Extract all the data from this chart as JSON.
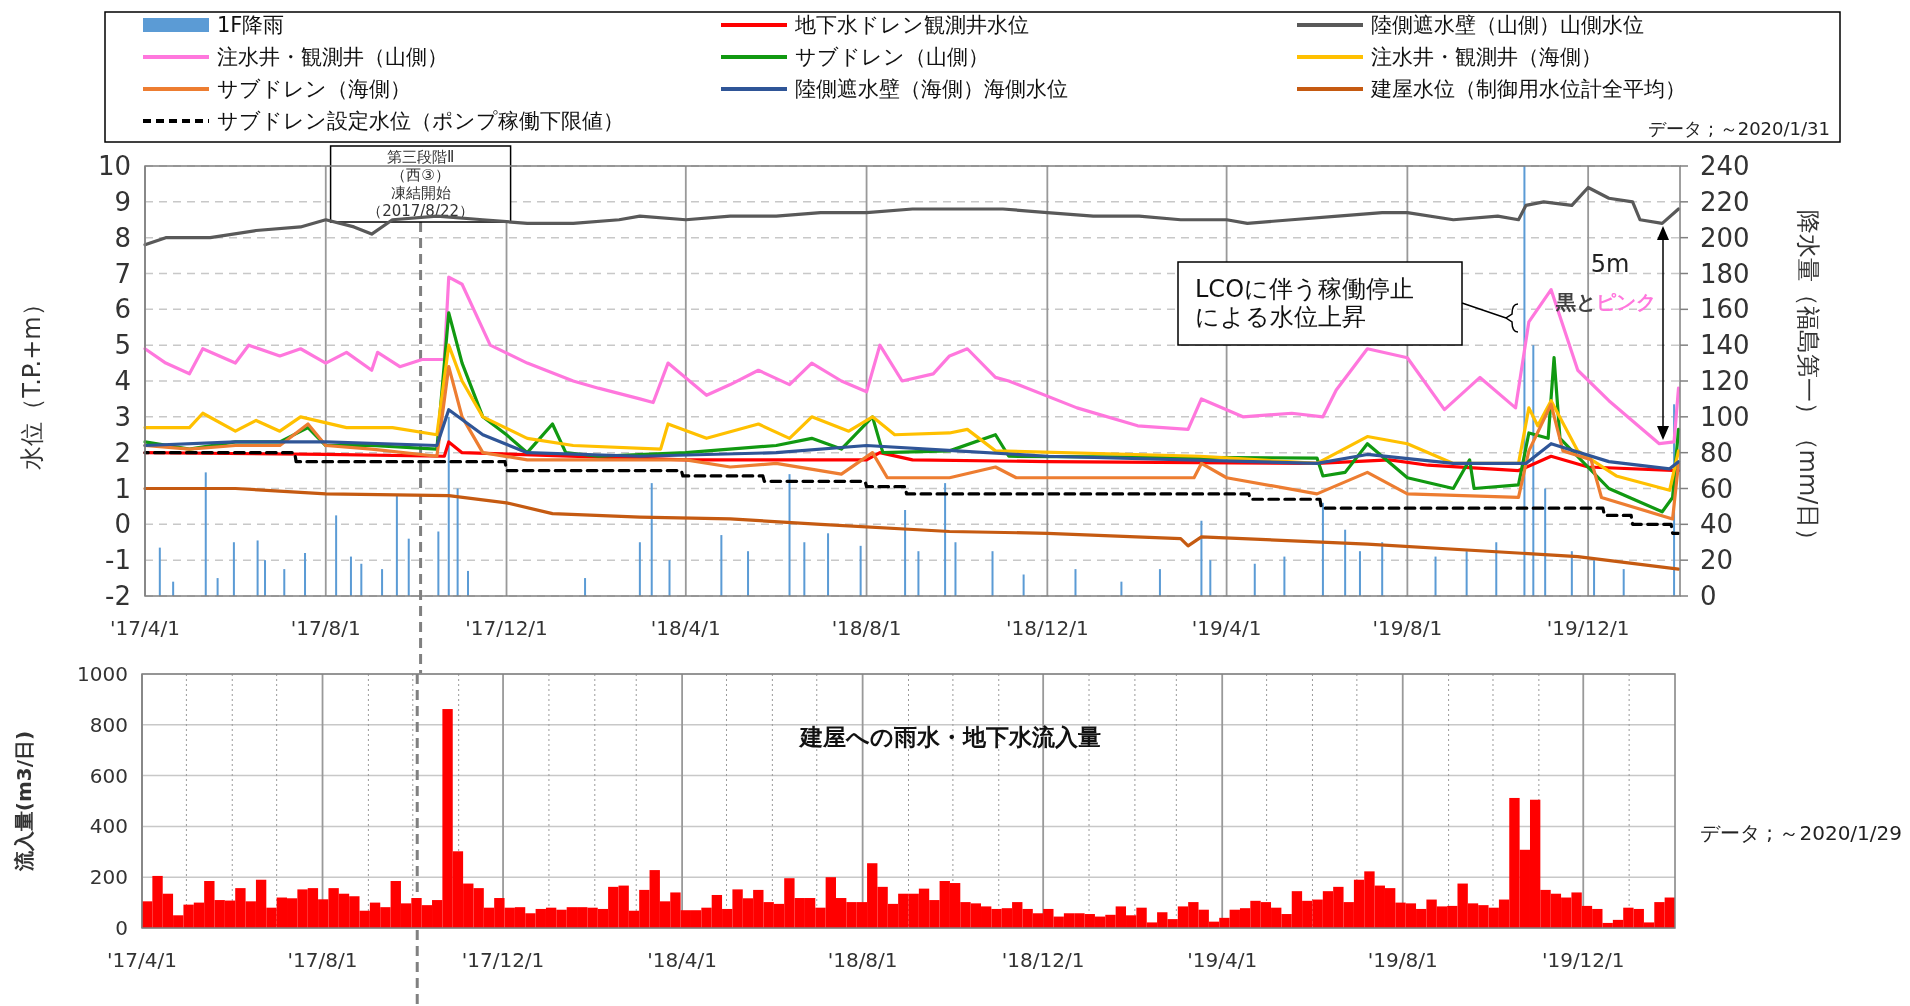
{
  "chart_data": [
    {
      "type": "line",
      "ylabel": "水位（T.P.+m）",
      "y2label": "降水量（福島第一）（mm/日）",
      "legend": "top",
      "grid": true,
      "xlim": [
        "2017-04-01",
        "2020-02-01"
      ],
      "xticks": [
        {
          "value": "2017-04-01",
          "label": "'17/4/1"
        },
        {
          "value": "2017-08-01",
          "label": "'17/8/1"
        },
        {
          "value": "2017-12-01",
          "label": "'17/12/1"
        },
        {
          "value": "2018-04-01",
          "label": "'18/4/1"
        },
        {
          "value": "2018-08-01",
          "label": "'18/8/1"
        },
        {
          "value": "2018-12-01",
          "label": "'18/12/1"
        },
        {
          "value": "2019-04-01",
          "label": "'19/4/1"
        },
        {
          "value": "2019-08-01",
          "label": "'19/8/1"
        },
        {
          "value": "2019-12-01",
          "label": "'19/12/1"
        }
      ],
      "ylim": [
        -2,
        10
      ],
      "yticks": [
        -2,
        -1,
        0,
        1,
        2,
        3,
        4,
        5,
        6,
        7,
        8,
        9,
        10
      ],
      "y2lim": [
        0,
        240
      ],
      "y2ticks": [
        0,
        20,
        40,
        60,
        80,
        100,
        120,
        140,
        160,
        180,
        200,
        220,
        240
      ],
      "series": [
        {
          "name": "1F降雨",
          "type": "bar",
          "axis": "y2",
          "color": "#5b9bd5",
          "x": [
            "2017-04-11",
            "2017-04-20",
            "2017-05-12",
            "2017-05-20",
            "2017-05-31",
            "2017-06-16",
            "2017-06-21",
            "2017-07-04",
            "2017-07-18",
            "2017-08-08",
            "2017-08-18",
            "2017-08-25",
            "2017-09-08",
            "2017-09-18",
            "2017-09-26",
            "2017-10-16",
            "2017-10-23",
            "2017-10-29",
            "2017-11-05",
            "2018-01-23",
            "2018-03-01",
            "2018-03-09",
            "2018-03-21",
            "2018-04-25",
            "2018-05-13",
            "2018-06-10",
            "2018-06-20",
            "2018-07-06",
            "2018-07-28",
            "2018-08-27",
            "2018-09-05",
            "2018-09-23",
            "2018-09-30",
            "2018-10-25",
            "2018-11-15",
            "2018-12-20",
            "2019-01-20",
            "2019-02-15",
            "2019-03-15",
            "2019-03-21",
            "2019-04-20",
            "2019-05-10",
            "2019-06-05",
            "2019-06-20",
            "2019-06-30",
            "2019-07-15",
            "2019-08-20",
            "2019-09-10",
            "2019-09-30",
            "2019-10-19",
            "2019-10-25",
            "2019-11-02",
            "2019-11-20",
            "2019-12-05",
            "2019-12-25",
            "2020-01-28"
          ],
          "values": [
            27,
            8,
            69,
            10,
            30,
            31,
            20,
            15,
            24,
            45,
            22,
            18,
            15,
            56,
            32,
            36,
            100,
            60,
            14,
            10,
            30,
            63,
            20,
            34,
            25,
            68,
            30,
            35,
            28,
            48,
            25,
            63,
            30,
            25,
            12,
            15,
            8,
            15,
            42,
            20,
            18,
            22,
            52,
            37,
            25,
            30,
            22,
            25,
            30,
            240,
            140,
            60,
            25,
            20,
            15,
            107
          ]
        },
        {
          "name": "地下水ドレン観測井水位",
          "color": "#ff0000",
          "x": [
            "2017-04-01",
            "2017-08-01",
            "2017-10-20",
            "2017-10-23",
            "2017-11-01",
            "2018-04-01",
            "2018-08-01",
            "2018-08-10",
            "2018-09-01",
            "2018-12-01",
            "2019-06-01",
            "2019-07-20",
            "2019-08-15",
            "2019-10-15",
            "2019-11-06",
            "2019-12-01",
            "2020-01-31"
          ],
          "values": [
            2.0,
            1.95,
            1.9,
            2.3,
            2.0,
            1.8,
            1.8,
            2.0,
            1.8,
            1.75,
            1.7,
            1.8,
            1.65,
            1.5,
            1.9,
            1.6,
            1.5
          ]
        },
        {
          "name": "陸側遮水壁（山側）山側水位",
          "color": "#595959",
          "x": [
            "2017-04-01",
            "2017-04-15",
            "2017-05-15",
            "2017-06-15",
            "2017-07-15",
            "2017-08-01",
            "2017-08-20",
            "2017-09-01",
            "2017-09-15",
            "2017-10-15",
            "2017-11-15",
            "2017-12-15",
            "2018-01-15",
            "2018-02-15",
            "2018-03-01",
            "2018-04-01",
            "2018-05-01",
            "2018-06-01",
            "2018-07-01",
            "2018-08-01",
            "2018-09-01",
            "2018-10-01",
            "2018-11-01",
            "2018-12-01",
            "2019-01-01",
            "2019-02-01",
            "2019-03-01",
            "2019-04-01",
            "2019-04-15",
            "2019-05-15",
            "2019-06-15",
            "2019-07-15",
            "2019-08-01",
            "2019-09-01",
            "2019-10-01",
            "2019-10-15",
            "2019-10-20",
            "2019-11-01",
            "2019-11-20",
            "2019-12-01",
            "2019-12-15",
            "2019-12-31",
            "2020-01-05",
            "2020-01-20",
            "2020-01-31"
          ],
          "values": [
            7.8,
            8.0,
            8.0,
            8.2,
            8.3,
            8.5,
            8.3,
            8.1,
            8.5,
            8.6,
            8.5,
            8.4,
            8.4,
            8.5,
            8.6,
            8.5,
            8.6,
            8.6,
            8.7,
            8.7,
            8.8,
            8.8,
            8.8,
            8.7,
            8.6,
            8.6,
            8.5,
            8.5,
            8.4,
            8.5,
            8.6,
            8.7,
            8.7,
            8.5,
            8.6,
            8.5,
            8.9,
            9.0,
            8.9,
            9.4,
            9.1,
            9.0,
            8.5,
            8.4,
            8.8
          ]
        },
        {
          "name": "注水井・観測井（山側）",
          "color": "#ff77dd",
          "x": [
            "2017-04-01",
            "2017-04-15",
            "2017-05-01",
            "2017-05-10",
            "2017-06-01",
            "2017-06-10",
            "2017-07-01",
            "2017-07-15",
            "2017-08-01",
            "2017-08-15",
            "2017-09-01",
            "2017-09-05",
            "2017-09-20",
            "2017-10-05",
            "2017-10-20",
            "2017-10-23",
            "2017-11-01",
            "2017-11-20",
            "2017-12-15",
            "2018-01-15",
            "2018-02-01",
            "2018-03-01",
            "2018-03-10",
            "2018-03-20",
            "2018-04-15",
            "2018-05-01",
            "2018-05-20",
            "2018-06-10",
            "2018-06-25",
            "2018-07-15",
            "2018-08-01",
            "2018-08-10",
            "2018-08-25",
            "2018-09-15",
            "2018-09-26",
            "2018-10-08",
            "2018-10-27",
            "2018-11-05",
            "2018-12-21",
            "2019-01-31",
            "2019-03-06",
            "2019-03-15",
            "2019-04-12",
            "2019-05-15",
            "2019-06-05",
            "2019-06-14",
            "2019-07-05",
            "2019-08-01",
            "2019-08-26",
            "2019-09-19",
            "2019-10-13",
            "2019-10-22",
            "2019-11-06",
            "2019-11-24",
            "2019-12-15",
            "2020-01-18",
            "2020-01-28",
            "2020-01-31"
          ],
          "values": [
            4.9,
            4.5,
            4.2,
            4.9,
            4.5,
            5.0,
            4.7,
            4.9,
            4.5,
            4.8,
            4.3,
            4.8,
            4.4,
            4.6,
            4.6,
            6.9,
            6.7,
            5.0,
            4.5,
            4.0,
            3.8,
            3.5,
            3.4,
            4.5,
            3.6,
            3.9,
            4.3,
            3.9,
            4.5,
            4.0,
            3.7,
            5.0,
            4.0,
            4.2,
            4.7,
            4.9,
            4.1,
            4.0,
            3.25,
            2.75,
            2.65,
            3.5,
            3.0,
            3.1,
            3.0,
            3.75,
            4.9,
            4.65,
            3.2,
            4.1,
            3.25,
            5.65,
            6.55,
            4.3,
            3.45,
            2.25,
            2.3,
            3.8
          ]
        },
        {
          "name": "サブドレン（山側）",
          "color": "#119911",
          "x": [
            "2017-04-01",
            "2017-05-01",
            "2017-06-01",
            "2017-07-01",
            "2017-07-20",
            "2017-08-01",
            "2017-09-01",
            "2017-10-15",
            "2017-10-23",
            "2017-11-01",
            "2017-11-15",
            "2017-12-01",
            "2017-12-15",
            "2018-01-01",
            "2018-01-10",
            "2018-02-01",
            "2018-04-01",
            "2018-06-01",
            "2018-06-25",
            "2018-07-15",
            "2018-08-05",
            "2018-08-12",
            "2018-09-26",
            "2018-10-27",
            "2018-11-05",
            "2019-06-01",
            "2019-06-05",
            "2019-06-20",
            "2019-07-05",
            "2019-08-01",
            "2019-09-01",
            "2019-09-12",
            "2019-09-15",
            "2019-10-15",
            "2019-10-22",
            "2019-11-04",
            "2019-11-08",
            "2019-11-12",
            "2019-12-15",
            "2020-01-20",
            "2020-01-27",
            "2020-01-31"
          ],
          "values": [
            2.3,
            2.1,
            2.3,
            2.3,
            2.7,
            2.2,
            2.2,
            2.1,
            5.9,
            4.5,
            3.0,
            2.5,
            2.0,
            2.8,
            2.0,
            1.9,
            2.0,
            2.2,
            2.4,
            2.1,
            3.0,
            2.0,
            2.05,
            2.5,
            1.9,
            1.85,
            1.35,
            1.45,
            2.25,
            1.3,
            1.0,
            1.8,
            1.0,
            1.1,
            2.55,
            2.4,
            4.65,
            2.4,
            1.0,
            0.35,
            0.75,
            2.65
          ]
        },
        {
          "name": "注水井・観測井（海側）",
          "color": "#ffc000",
          "x": [
            "2017-04-01",
            "2017-05-01",
            "2017-05-10",
            "2017-06-01",
            "2017-06-15",
            "2017-07-01",
            "2017-07-15",
            "2017-08-15",
            "2017-09-15",
            "2017-10-15",
            "2017-10-23",
            "2017-11-01",
            "2017-11-15",
            "2017-12-15",
            "2018-01-15",
            "2018-03-15",
            "2018-03-20",
            "2018-04-15",
            "2018-05-20",
            "2018-06-10",
            "2018-06-25",
            "2018-07-20",
            "2018-08-05",
            "2018-08-20",
            "2018-09-26",
            "2018-10-08",
            "2018-10-27",
            "2019-03-14",
            "2019-06-01",
            "2019-07-05",
            "2019-08-01",
            "2019-09-01",
            "2019-10-15",
            "2019-10-22",
            "2019-10-28",
            "2019-11-06",
            "2019-11-24",
            "2019-12-20",
            "2020-01-25",
            "2020-01-31"
          ],
          "values": [
            2.7,
            2.7,
            3.1,
            2.6,
            2.9,
            2.6,
            3.0,
            2.7,
            2.7,
            2.5,
            5.0,
            4.0,
            3.0,
            2.4,
            2.2,
            2.1,
            2.8,
            2.4,
            2.8,
            2.4,
            3.0,
            2.6,
            3.0,
            2.5,
            2.55,
            2.65,
            2.05,
            1.9,
            1.7,
            2.45,
            2.25,
            1.7,
            1.7,
            3.25,
            2.75,
            3.45,
            2.05,
            1.35,
            0.95,
            2.05
          ]
        },
        {
          "name": "サブドレン（海側）",
          "color": "#ed7d31",
          "x": [
            "2017-04-01",
            "2017-05-01",
            "2017-06-01",
            "2017-07-01",
            "2017-07-20",
            "2017-08-01",
            "2017-09-01",
            "2017-10-15",
            "2017-10-23",
            "2017-11-01",
            "2017-11-15",
            "2017-12-15",
            "2018-02-01",
            "2018-04-01",
            "2018-05-01",
            "2018-06-01",
            "2018-07-15",
            "2018-08-05",
            "2018-08-15",
            "2018-09-26",
            "2018-10-27",
            "2018-11-10",
            "2019-03-10",
            "2019-03-15",
            "2019-04-01",
            "2019-06-01",
            "2019-07-05",
            "2019-08-01",
            "2019-10-15",
            "2019-10-22",
            "2019-11-06",
            "2019-11-14",
            "2019-12-03",
            "2019-12-10",
            "2020-01-27",
            "2020-01-31"
          ],
          "values": [
            2.2,
            2.1,
            2.2,
            2.2,
            2.8,
            2.2,
            2.1,
            1.9,
            4.4,
            3.0,
            2.0,
            1.8,
            1.8,
            1.8,
            1.6,
            1.7,
            1.4,
            2.0,
            1.3,
            1.3,
            1.6,
            1.3,
            1.3,
            1.7,
            1.3,
            0.85,
            1.45,
            0.85,
            0.75,
            2.05,
            3.35,
            2.05,
            1.8,
            0.75,
            0.15,
            1.7
          ]
        },
        {
          "name": "陸側遮水壁（海側）海側水位",
          "color": "#2f5597",
          "x": [
            "2017-04-01",
            "2017-06-01",
            "2017-08-01",
            "2017-10-15",
            "2017-10-23",
            "2017-11-15",
            "2017-12-15",
            "2018-03-01",
            "2018-06-01",
            "2018-08-01",
            "2018-10-01",
            "2018-12-01",
            "2019-06-01",
            "2019-07-05",
            "2019-09-01",
            "2019-10-20",
            "2019-11-06",
            "2019-12-15",
            "2020-01-25",
            "2020-01-31"
          ],
          "values": [
            2.2,
            2.3,
            2.3,
            2.2,
            3.2,
            2.5,
            2.0,
            1.9,
            2.0,
            2.2,
            2.05,
            1.9,
            1.7,
            1.95,
            1.7,
            1.7,
            2.25,
            1.75,
            1.55,
            1.75
          ]
        },
        {
          "name": "建屋水位（制御用水位計全平均）",
          "color": "#c55a11",
          "x": [
            "2017-04-01",
            "2017-06-01",
            "2017-08-01",
            "2017-10-23",
            "2017-12-01",
            "2018-01-01",
            "2018-03-01",
            "2018-05-01",
            "2018-07-01",
            "2018-09-26",
            "2018-12-01",
            "2019-03-01",
            "2019-03-06",
            "2019-03-15",
            "2019-07-05",
            "2019-11-24",
            "2020-01-31"
          ],
          "values": [
            1.0,
            1.0,
            0.85,
            0.8,
            0.6,
            0.3,
            0.2,
            0.15,
            0.0,
            -0.2,
            -0.25,
            -0.4,
            -0.6,
            -0.35,
            -0.55,
            -0.9,
            -1.25
          ]
        },
        {
          "name": "サブドレン設定水位（ポンプ稼働下限値）",
          "color": "#000000",
          "line_style": "dashed",
          "x": [
            "2017-04-01",
            "2017-07-11",
            "2017-07-12",
            "2017-11-30",
            "2017-12-01",
            "2018-03-29",
            "2018-03-30",
            "2018-05-23",
            "2018-05-24",
            "2018-07-31",
            "2018-08-01",
            "2018-08-27",
            "2018-08-28",
            "2019-04-16",
            "2019-04-17",
            "2019-06-03",
            "2019-06-04",
            "2019-12-11",
            "2019-12-12",
            "2019-12-30",
            "2019-12-31",
            "2020-01-26",
            "2020-01-27",
            "2020-01-31"
          ],
          "values": [
            2.0,
            2.0,
            1.75,
            1.75,
            1.5,
            1.5,
            1.35,
            1.35,
            1.2,
            1.2,
            1.05,
            1.05,
            0.85,
            0.85,
            0.7,
            0.7,
            0.45,
            0.45,
            0.25,
            0.25,
            0.0,
            0.0,
            -0.25,
            -0.25
          ]
        }
      ],
      "ref_lines": [
        {
          "axis": "x",
          "value": "2017-10-04",
          "label": "第三段階Ⅱ（西③）凍結開始（2017/8/22）"
        }
      ],
      "annotations": [
        "データ ; ～2020/1/31",
        "LCOに伴う稼働停止による水位上昇",
        "5m",
        "黒と",
        "ピンク"
      ]
    },
    {
      "type": "bar",
      "title": "建屋への雨水・地下水流入量",
      "ylabel": "流入量(m3/日)",
      "grid": true,
      "color": "#ff0000",
      "xlim": [
        "2017-04-01",
        "2020-02-01"
      ],
      "xticks": [
        {
          "value": "2017-04-01",
          "label": "'17/4/1"
        },
        {
          "value": "2017-05-01",
          "label": null
        },
        {
          "value": "2017-06-01",
          "label": null
        },
        {
          "value": "2017-07-01",
          "label": null
        },
        {
          "value": "2017-08-01",
          "label": "'17/8/1"
        },
        {
          "value": "2017-09-01",
          "label": null
        },
        {
          "value": "2017-10-01",
          "label": null
        },
        {
          "value": "2017-11-01",
          "label": null
        },
        {
          "value": "2017-12-01",
          "label": "'17/12/1"
        },
        {
          "value": "2018-01-01",
          "label": null
        },
        {
          "value": "2018-02-01",
          "label": null
        },
        {
          "value": "2018-03-01",
          "label": null
        },
        {
          "value": "2018-04-01",
          "label": "'18/4/1"
        },
        {
          "value": "2018-05-01",
          "label": null
        },
        {
          "value": "2018-06-01",
          "label": null
        },
        {
          "value": "2018-07-01",
          "label": null
        },
        {
          "value": "2018-08-01",
          "label": "'18/8/1"
        },
        {
          "value": "2018-09-01",
          "label": null
        },
        {
          "value": "2018-10-01",
          "label": null
        },
        {
          "value": "2018-11-01",
          "label": null
        },
        {
          "value": "2018-12-01",
          "label": "'18/12/1"
        },
        {
          "value": "2019-01-01",
          "label": null
        },
        {
          "value": "2019-02-01",
          "label": null
        },
        {
          "value": "2019-03-01",
          "label": null
        },
        {
          "value": "2019-04-01",
          "label": "'19/4/1"
        },
        {
          "value": "2019-05-01",
          "label": null
        },
        {
          "value": "2019-06-01",
          "label": null
        },
        {
          "value": "2019-07-01",
          "label": null
        },
        {
          "value": "2019-08-01",
          "label": "'19/8/1"
        },
        {
          "value": "2019-09-01",
          "label": null
        },
        {
          "value": "2019-10-01",
          "label": null
        },
        {
          "value": "2019-11-01",
          "label": null
        },
        {
          "value": "2019-12-01",
          "label": "'19/12/1"
        },
        {
          "value": "2020-01-01",
          "label": null
        }
      ],
      "ylim": [
        0,
        1000
      ],
      "yticks": [
        0,
        200,
        400,
        600,
        800,
        1000
      ],
      "x": [
        "2017-04-01",
        "2017-04-08",
        "2017-04-15",
        "2017-04-22",
        "2017-04-29",
        "2017-05-06",
        "2017-05-13",
        "2017-05-20",
        "2017-05-27",
        "2017-06-03",
        "2017-06-10",
        "2017-06-17",
        "2017-06-24",
        "2017-07-01",
        "2017-07-08",
        "2017-07-15",
        "2017-07-22",
        "2017-07-29",
        "2017-08-05",
        "2017-08-12",
        "2017-08-19",
        "2017-08-26",
        "2017-09-02",
        "2017-09-09",
        "2017-09-16",
        "2017-09-23",
        "2017-09-30",
        "2017-10-07",
        "2017-10-14",
        "2017-10-21",
        "2017-10-28",
        "2017-11-04",
        "2017-11-11",
        "2017-11-18",
        "2017-11-25",
        "2017-12-02",
        "2017-12-09",
        "2017-12-16",
        "2017-12-23",
        "2017-12-30",
        "2018-01-06",
        "2018-01-13",
        "2018-01-20",
        "2018-01-27",
        "2018-02-03",
        "2018-02-10",
        "2018-02-17",
        "2018-02-24",
        "2018-03-03",
        "2018-03-10",
        "2018-03-17",
        "2018-03-24",
        "2018-03-31",
        "2018-04-07",
        "2018-04-14",
        "2018-04-21",
        "2018-04-28",
        "2018-05-05",
        "2018-05-12",
        "2018-05-19",
        "2018-05-26",
        "2018-06-02",
        "2018-06-09",
        "2018-06-16",
        "2018-06-23",
        "2018-06-30",
        "2018-07-07",
        "2018-07-14",
        "2018-07-21",
        "2018-07-28",
        "2018-08-04",
        "2018-08-11",
        "2018-08-18",
        "2018-08-25",
        "2018-09-01",
        "2018-09-08",
        "2018-09-15",
        "2018-09-22",
        "2018-09-29",
        "2018-10-06",
        "2018-10-13",
        "2018-10-20",
        "2018-10-27",
        "2018-11-03",
        "2018-11-10",
        "2018-11-17",
        "2018-11-24",
        "2018-12-01",
        "2018-12-08",
        "2018-12-15",
        "2018-12-22",
        "2018-12-29",
        "2019-01-05",
        "2019-01-12",
        "2019-01-19",
        "2019-01-26",
        "2019-02-02",
        "2019-02-09",
        "2019-02-16",
        "2019-02-23",
        "2019-03-02",
        "2019-03-09",
        "2019-03-16",
        "2019-03-23",
        "2019-03-30",
        "2019-04-06",
        "2019-04-13",
        "2019-04-20",
        "2019-04-27",
        "2019-05-04",
        "2019-05-11",
        "2019-05-18",
        "2019-05-25",
        "2019-06-01",
        "2019-06-08",
        "2019-06-15",
        "2019-06-22",
        "2019-06-29",
        "2019-07-06",
        "2019-07-13",
        "2019-07-20",
        "2019-07-27",
        "2019-08-03",
        "2019-08-10",
        "2019-08-17",
        "2019-08-24",
        "2019-08-31",
        "2019-09-07",
        "2019-09-14",
        "2019-09-21",
        "2019-09-28",
        "2019-10-05",
        "2019-10-12",
        "2019-10-19",
        "2019-10-26",
        "2019-11-02",
        "2019-11-09",
        "2019-11-16",
        "2019-11-23",
        "2019-11-30",
        "2019-12-07",
        "2019-12-14",
        "2019-12-21",
        "2019-12-28",
        "2020-01-04",
        "2020-01-11",
        "2020-01-18",
        "2020-01-25"
      ],
      "values": [
        105,
        205,
        135,
        50,
        92,
        100,
        185,
        110,
        108,
        157,
        105,
        190,
        80,
        120,
        117,
        152,
        157,
        113,
        157,
        135,
        125,
        68,
        100,
        82,
        185,
        97,
        118,
        90,
        110,
        862,
        302,
        175,
        157,
        80,
        118,
        80,
        82,
        58,
        75,
        80,
        72,
        82,
        82,
        80,
        75,
        162,
        167,
        68,
        150,
        228,
        105,
        140,
        70,
        70,
        80,
        130,
        75,
        152,
        117,
        150,
        102,
        95,
        196,
        118,
        118,
        80,
        200,
        118,
        102,
        102,
        255,
        162,
        95,
        135,
        135,
        155,
        110,
        185,
        177,
        102,
        97,
        85,
        75,
        78,
        102,
        75,
        58,
        75,
        45,
        58,
        58,
        55,
        45,
        52,
        85,
        50,
        80,
        22,
        62,
        35,
        85,
        102,
        72,
        25,
        40,
        72,
        78,
        107,
        102,
        80,
        55,
        145,
        107,
        112,
        145,
        162,
        102,
        190,
        223,
        167,
        157,
        100,
        97,
        75,
        112,
        85,
        87,
        175,
        97,
        90,
        80,
        112,
        512,
        308,
        505,
        150,
        135,
        120,
        140,
        87,
        75,
        20,
        32,
        80,
        75,
        22,
        102,
        120
      ],
      "ref_lines": [
        {
          "axis": "x",
          "value": "2017-10-04"
        }
      ],
      "annotations": [
        "データ ; ～2020/1/29"
      ]
    }
  ]
}
